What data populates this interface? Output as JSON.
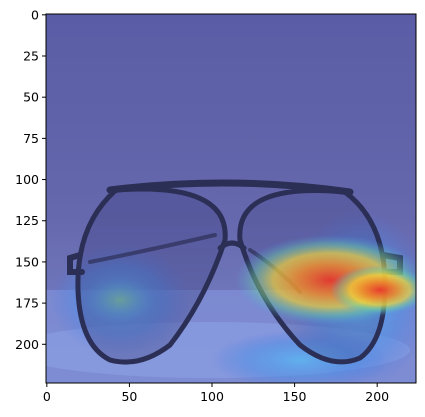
{
  "figure": {
    "image_description_semantics": "heatmap-overlay-on-photo",
    "x_ticks": [
      "0",
      "50",
      "100",
      "150",
      "200"
    ],
    "y_ticks": [
      "0",
      "25",
      "50",
      "75",
      "100",
      "125",
      "150",
      "175",
      "200"
    ],
    "x_tick_values": [
      0,
      50,
      100,
      150,
      200
    ],
    "y_tick_values": [
      0,
      25,
      50,
      75,
      100,
      125,
      150,
      175,
      200
    ],
    "x_range": [
      -0.5,
      223.5
    ],
    "y_range": [
      -0.5,
      223.5
    ],
    "colors": {
      "background_overlay": "#5d5fa8",
      "hot": "#e63b2a",
      "warm": "#f2c23a",
      "cool": "#4aa8e6",
      "axis": "#000000"
    }
  }
}
